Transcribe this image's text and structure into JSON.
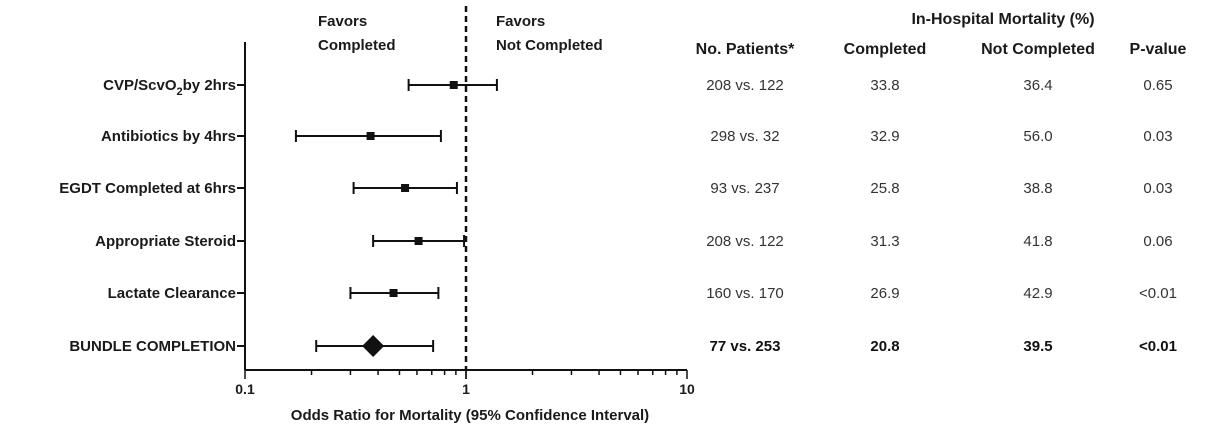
{
  "chart_data": {
    "type": "scatter",
    "subtype": "forest-plot",
    "xscale": "log",
    "xlim": [
      0.1,
      10
    ],
    "xticks": [
      "0.1",
      "1",
      "10"
    ],
    "xlabel": "Odds Ratio for Mortality (95% Confidence  Interval)",
    "favors_left": [
      "Favors",
      "Completed"
    ],
    "favors_right": [
      "Favors",
      "Not Completed"
    ],
    "reference_line": 1,
    "rows": [
      {
        "label": "CVP/ScvO",
        "label_sub": "2",
        "label_after": "by 2hrs",
        "or": 0.88,
        "ci": [
          0.55,
          1.38
        ],
        "marker": "square",
        "bold": false
      },
      {
        "label": "Antibiotics by 4hrs",
        "label_sub": "",
        "label_after": "",
        "or": 0.37,
        "ci": [
          0.17,
          0.77
        ],
        "marker": "square",
        "bold": false
      },
      {
        "label": "EGDT Completed at 6hrs",
        "label_sub": "",
        "label_after": "",
        "or": 0.53,
        "ci": [
          0.31,
          0.91
        ],
        "marker": "square",
        "bold": false
      },
      {
        "label": "Appropriate Steroid",
        "label_sub": "",
        "label_after": "",
        "or": 0.61,
        "ci": [
          0.38,
          0.98
        ],
        "marker": "square",
        "bold": false
      },
      {
        "label": "Lactate Clearance",
        "label_sub": "",
        "label_after": "",
        "or": 0.47,
        "ci": [
          0.3,
          0.75
        ],
        "marker": "square",
        "bold": false
      },
      {
        "label": "BUNDLE COMPLETION",
        "label_sub": "",
        "label_after": "",
        "or": 0.38,
        "ci": [
          0.21,
          0.71
        ],
        "marker": "diamond",
        "bold": true
      }
    ]
  },
  "table": {
    "group_header": "In-Hospital Mortality (%)",
    "columns": [
      "No. Patients*",
      "Completed",
      "Not Completed",
      "P-value"
    ],
    "rows": [
      {
        "patients": "208 vs. 122",
        "completed": "33.8",
        "not_completed": "36.4",
        "p": "0.65",
        "bold": false
      },
      {
        "patients": "298 vs. 32",
        "completed": "32.9",
        "not_completed": "56.0",
        "p": "0.03",
        "bold": false
      },
      {
        "patients": "93 vs. 237",
        "completed": "25.8",
        "not_completed": "38.8",
        "p": "0.03",
        "bold": false
      },
      {
        "patients": "208 vs. 122",
        "completed": "31.3",
        "not_completed": "41.8",
        "p": "0.06",
        "bold": false
      },
      {
        "patients": "160 vs. 170",
        "completed": "26.9",
        "not_completed": "42.9",
        "p": "<0.01",
        "bold": false
      },
      {
        "patients": "77 vs. 253",
        "completed": "20.8",
        "not_completed": "39.5",
        "p": "<0.01",
        "bold": true
      }
    ]
  }
}
